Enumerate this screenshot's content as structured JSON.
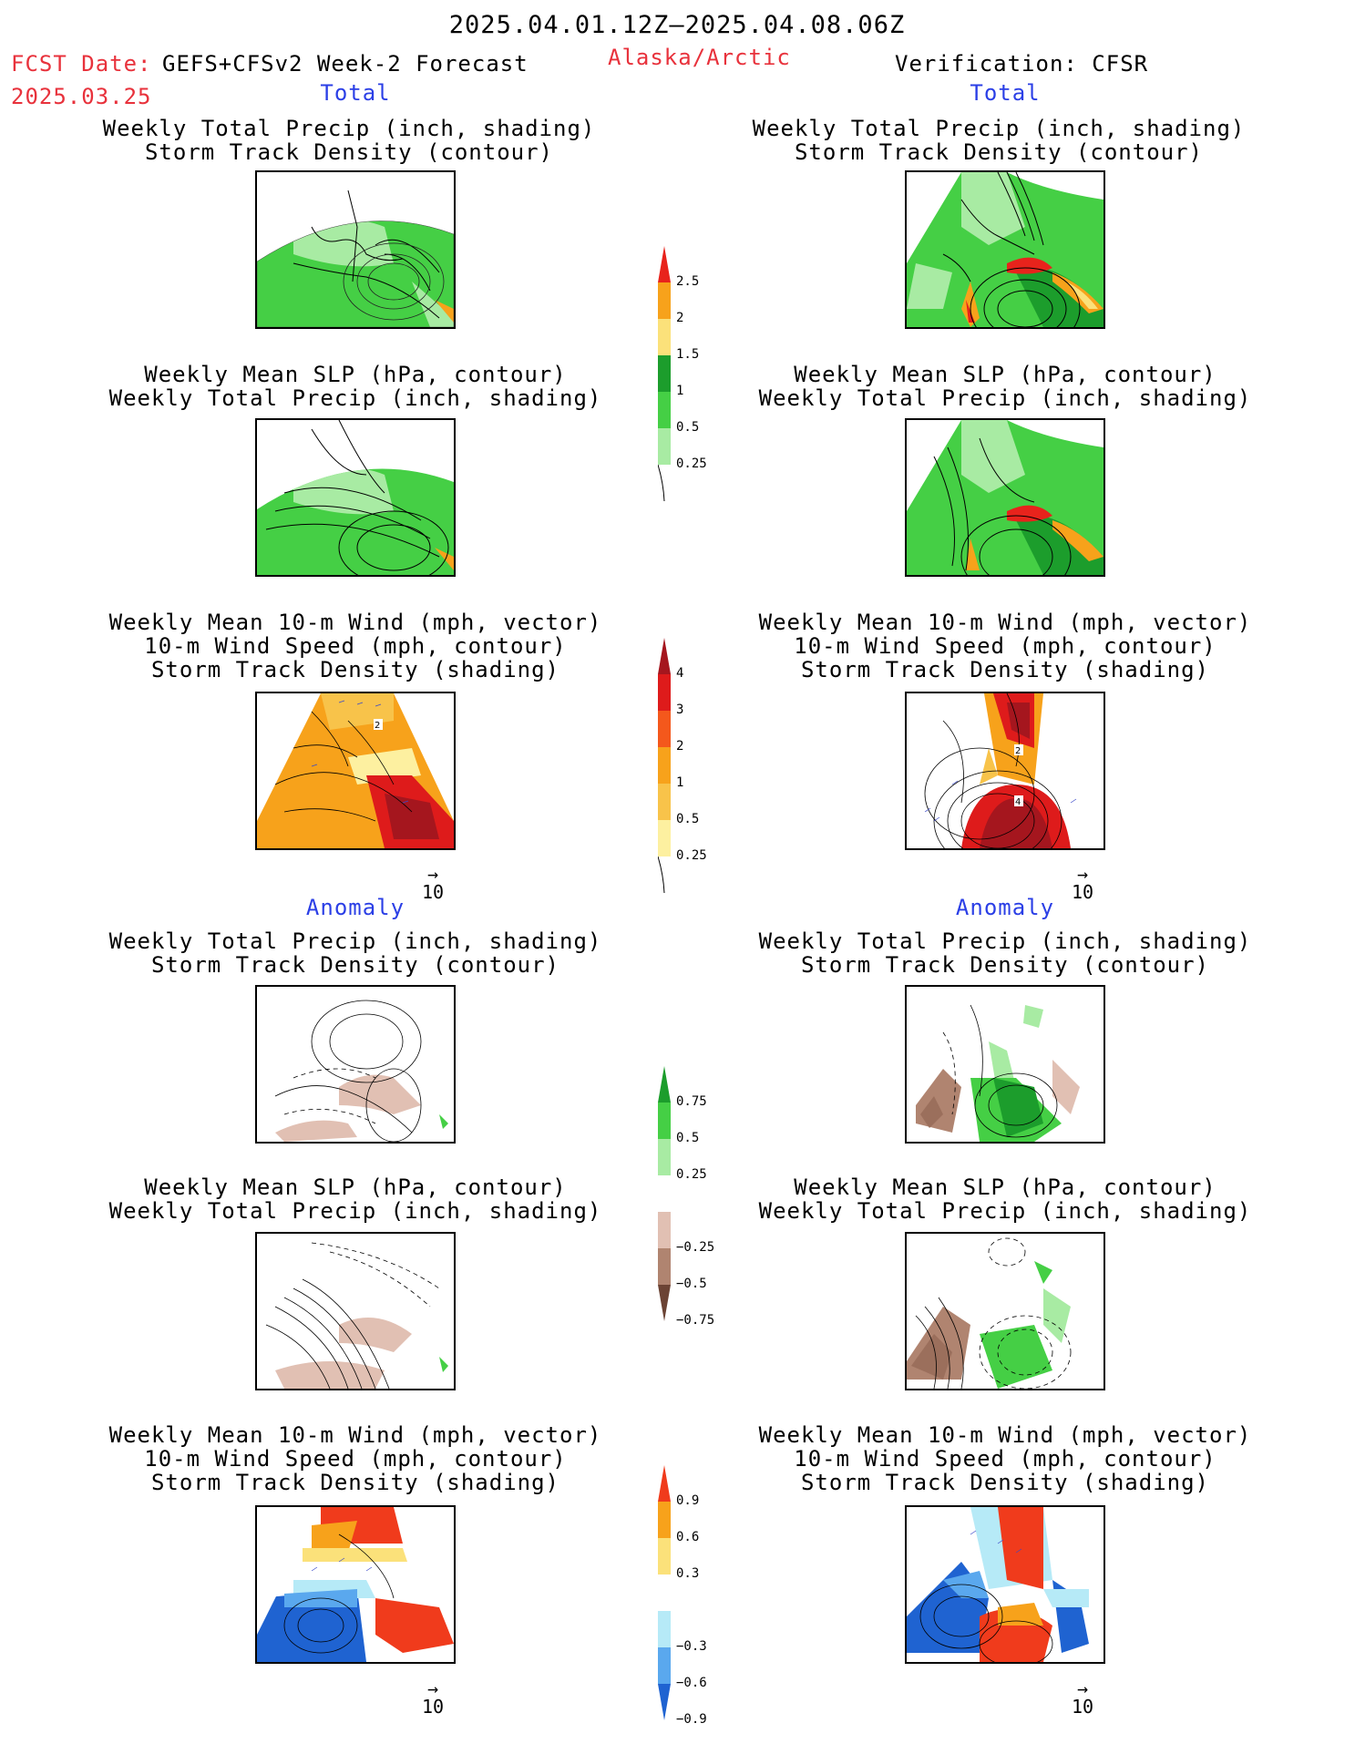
{
  "header": {
    "date_range": "2025.04.01.12Z–2025.04.08.06Z",
    "fcst_label": "FCST Date:",
    "fcst_model": "GEFS+CFSv2 Week-2 Forecast",
    "fcst_date": "2025.03.25",
    "region": "Alaska/Arctic",
    "verification": "Verification: CFSR"
  },
  "sections": {
    "total_left": "Total",
    "total_right": "Total",
    "anomaly_left": "Anomaly",
    "anomaly_right": "Anomaly"
  },
  "panel_titles": {
    "precip_storm": [
      "Weekly Total Precip (inch, shading)",
      "Storm Track Density (contour)"
    ],
    "slp_precip": [
      "Weekly Mean SLP (hPa, contour)",
      "Weekly Total Precip (inch, shading)"
    ],
    "wind_storm": [
      "Weekly Mean 10-m Wind (mph, vector)",
      "10-m Wind Speed (mph, contour)",
      "Storm Track Density (shading)"
    ]
  },
  "vector_scale": "10",
  "colorbars": {
    "precip_total": {
      "labels": [
        "2.5",
        "2",
        "1.5",
        "1",
        "0.5",
        "0.25"
      ],
      "colors": [
        "#e8231c",
        "#f7a21b",
        "#fbe17a",
        "#1c9d2c",
        "#45cf45",
        "#a8eba3"
      ]
    },
    "storm_total": {
      "labels": [
        "4",
        "3",
        "2",
        "1",
        "0.5",
        "0.25"
      ],
      "colors": [
        "#a5161e",
        "#de1b1b",
        "#f4581c",
        "#f7a21b",
        "#f8c34a",
        "#fdf0a0"
      ]
    },
    "precip_anom": {
      "labels": [
        "0.75",
        "0.5",
        "0.25",
        "−0.25",
        "−0.5",
        "−0.75"
      ],
      "colors": [
        "#1c9d2c",
        "#45cf45",
        "#a8eba3",
        "#ffffff",
        "#e1c0b3",
        "#b08470",
        "#6b4334"
      ]
    },
    "storm_anom": {
      "labels": [
        "0.9",
        "0.6",
        "0.3",
        "−0.3",
        "−0.6",
        "−0.9"
      ],
      "colors": [
        "#f03b1c",
        "#f7a21b",
        "#fbe17a",
        "#ffffff",
        "#b6eaf7",
        "#5aa8ee",
        "#1f63d1"
      ]
    }
  }
}
